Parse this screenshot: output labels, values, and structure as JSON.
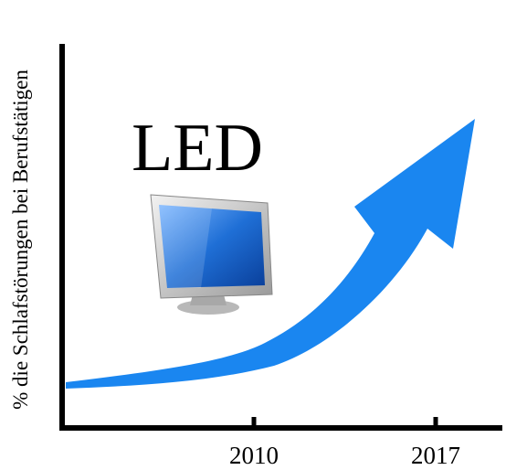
{
  "y_axis": {
    "label": "% die Schlafstörungen bei Berufstätigen"
  },
  "x_axis": {
    "ticks": [
      2010,
      2017
    ]
  },
  "annotation": "LED"
}
